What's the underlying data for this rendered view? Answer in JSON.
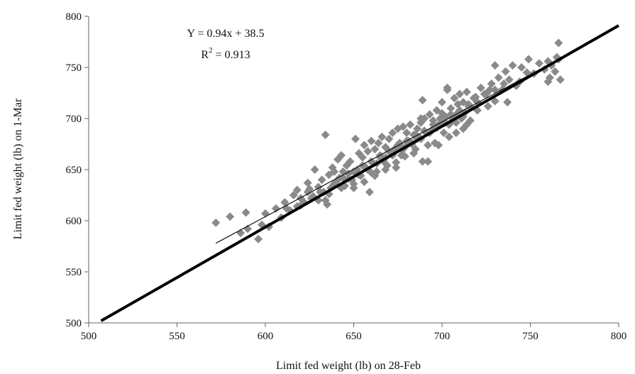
{
  "chart_data": {
    "type": "scatter",
    "xlabel": "Limit fed weight (lb) on 28-Feb",
    "ylabel": "Limit fed weight (lb) on 1-Mar",
    "xlim": [
      500,
      800
    ],
    "ylim": [
      500,
      800
    ],
    "xticks": [
      500,
      550,
      600,
      650,
      700,
      750,
      800
    ],
    "yticks": [
      500,
      550,
      600,
      650,
      700,
      750,
      800
    ],
    "grid": false,
    "legend": "none",
    "colors": {
      "points": "#8a8a8a",
      "identity_line": "#000000",
      "fit_line": "#111111",
      "axes": "#666666"
    },
    "annotation": {
      "equation": "Y = 0.94x + 38.5",
      "r2_label": "R",
      "r2_sup": "2",
      "r2_value": " = 0.913"
    },
    "lines": [
      {
        "role": "identity",
        "x": [
          507,
          800
        ],
        "y": [
          502,
          791
        ]
      },
      {
        "role": "fit",
        "x": [
          572,
          765
        ],
        "y": [
          578,
          757
        ]
      }
    ],
    "series": [
      {
        "x": [
          572,
          580,
          586,
          589,
          590,
          596,
          598,
          600,
          602,
          606,
          609,
          611,
          614,
          616,
          618,
          620,
          622,
          624,
          625,
          627,
          628,
          630,
          632,
          633,
          634,
          635,
          636,
          637,
          638,
          640,
          641,
          642,
          643,
          644,
          645,
          646,
          647,
          648,
          649,
          650,
          651,
          652,
          653,
          654,
          655,
          656,
          657,
          658,
          659,
          660,
          661,
          662,
          663,
          664,
          665,
          666,
          667,
          668,
          669,
          670,
          671,
          672,
          673,
          674,
          675,
          676,
          677,
          678,
          679,
          680,
          681,
          682,
          683,
          684,
          685,
          686,
          687,
          688,
          689,
          690,
          691,
          692,
          693,
          694,
          695,
          696,
          697,
          698,
          699,
          700,
          701,
          702,
          703,
          704,
          705,
          706,
          707,
          708,
          709,
          710,
          711,
          712,
          713,
          714,
          715,
          716,
          718,
          720,
          722,
          724,
          726,
          728,
          730,
          732,
          734,
          736,
          738,
          740,
          745,
          749,
          752,
          755,
          758,
          760,
          762,
          764,
          765,
          766,
          767,
          620,
          626,
          631,
          639,
          644,
          650,
          655,
          660,
          665,
          670,
          675,
          680,
          685,
          690,
          695,
          700,
          705,
          710,
          715,
          725,
          730,
          735,
          760,
          634,
          689,
          703,
          708,
          712,
          650,
          660,
          666,
          672,
          678,
          683,
          688,
          693,
          697,
          702,
          706,
          636,
          643,
          647,
          652,
          658,
          663,
          668,
          673,
          677,
          682,
          686,
          691,
          730,
          748,
          766,
          761,
          714,
          719,
          727,
          737,
          742,
          744,
          700,
          653,
          645,
          639,
          630,
          624,
          618,
          612,
          662,
          668,
          674,
          679,
          684,
          656,
          688,
          692,
          698,
          704,
          708,
          712,
          716,
          720
        ],
        "y": [
          598,
          604,
          588,
          608,
          592,
          582,
          596,
          607,
          594,
          612,
          603,
          618,
          610,
          625,
          614,
          622,
          618,
          628,
          631,
          624,
          650,
          620,
          640,
          628,
          684,
          616,
          645,
          632,
          652,
          638,
          660,
          642,
          664,
          648,
          634,
          654,
          646,
          658,
          640,
          632,
          680,
          650,
          666,
          644,
          662,
          674,
          652,
          668,
          628,
          678,
          656,
          670,
          648,
          676,
          662,
          682,
          658,
          672,
          654,
          680,
          666,
          686,
          670,
          652,
          690,
          676,
          664,
          692,
          672,
          686,
          678,
          694,
          676,
          684,
          670,
          690,
          682,
          696,
          658,
          700,
          686,
          674,
          704,
          688,
          698,
          676,
          708,
          694,
          700,
          716,
          686,
          702,
          728,
          694,
          710,
          698,
          720,
          704,
          714,
          724,
          700,
          716,
          706,
          726,
          712,
          698,
          720,
          716,
          730,
          724,
          712,
          734,
          752,
          740,
          728,
          746,
          738,
          752,
          750,
          758,
          744,
          754,
          748,
          736,
          752,
          746,
          760,
          774,
          738,
          615,
          622,
          628,
          636,
          642,
          648,
          654,
          658,
          664,
          668,
          674,
          678,
          684,
          688,
          694,
          698,
          704,
          708,
          714,
          724,
          728,
          734,
          756,
          620,
          718,
          730,
          696,
          702,
          636,
          647,
          660,
          664,
          670,
          675,
          680,
          686,
          691,
          696,
          700,
          626,
          632,
          641,
          646,
          650,
          656,
          662,
          667,
          672,
          676,
          680,
          686,
          717,
          745,
          758,
          740,
          694,
          721,
          728,
          716,
          732,
          736,
          705,
          645,
          640,
          648,
          633,
          637,
          630,
          612,
          644,
          650,
          657,
          663,
          666,
          638,
          700,
          658,
          674,
          682,
          686,
          690,
          712,
          708
        ]
      }
    ]
  }
}
